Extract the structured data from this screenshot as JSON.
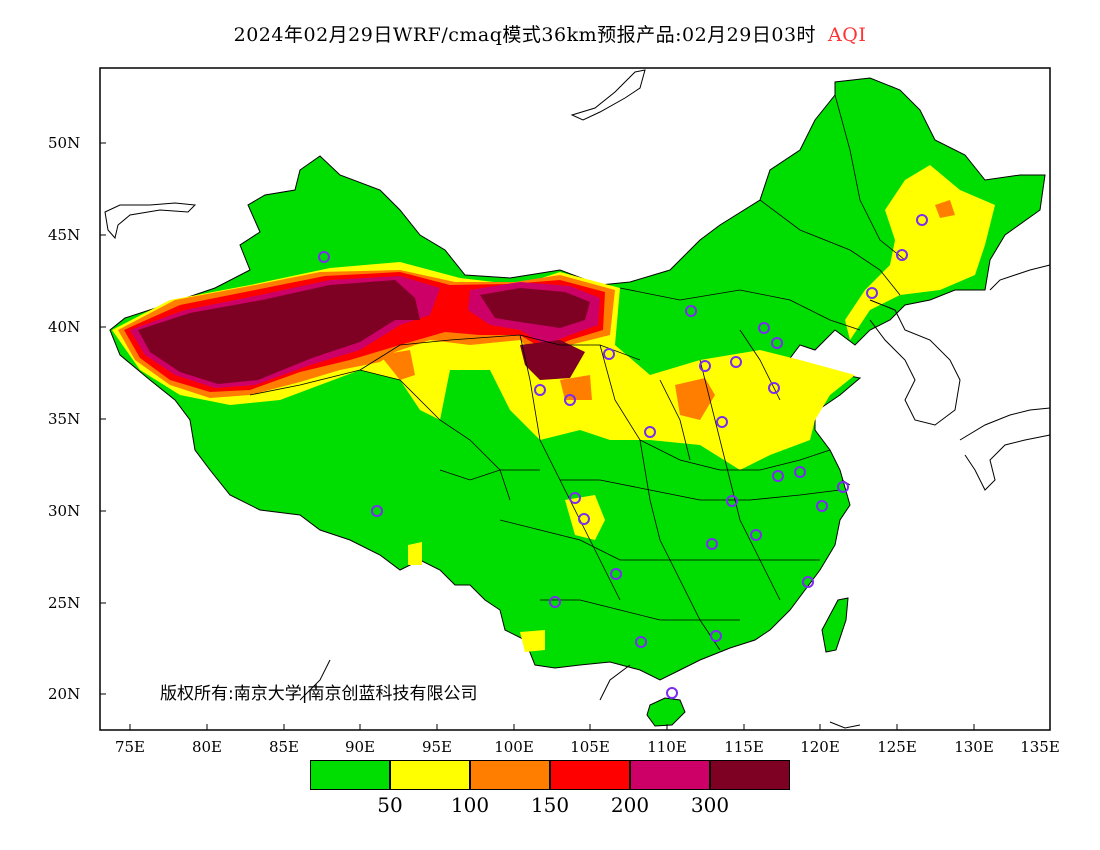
{
  "title": {
    "main": "2024年02月29日WRF/cmaq模式36km预报产品:02月29日03时",
    "product": "AQI",
    "product_color": "#ff0000"
  },
  "axes": {
    "y_labels": [
      "50N",
      "45N",
      "40N",
      "35N",
      "30N",
      "25N",
      "20N"
    ],
    "x_labels": [
      "75E",
      "80E",
      "85E",
      "90E",
      "95E",
      "100E",
      "105E",
      "110E",
      "115E",
      "120E",
      "125E",
      "130E",
      "135E"
    ]
  },
  "copyright": "版权所有:南京大学|南京创蓝科技有限公司",
  "legend": {
    "colors": [
      "#00dd00",
      "#ffff00",
      "#ff7e00",
      "#ff0000",
      "#cc0066",
      "#7e0023"
    ],
    "labels": [
      "50",
      "100",
      "150",
      "200",
      "300"
    ]
  },
  "colors": {
    "good": "#00dd00",
    "moderate": "#ffff00",
    "usg": "#ff7e00",
    "unhealthy": "#ff0000",
    "very_unhealthy": "#cc0066",
    "hazardous": "#7e0023",
    "marker": "#7b2cf0"
  }
}
